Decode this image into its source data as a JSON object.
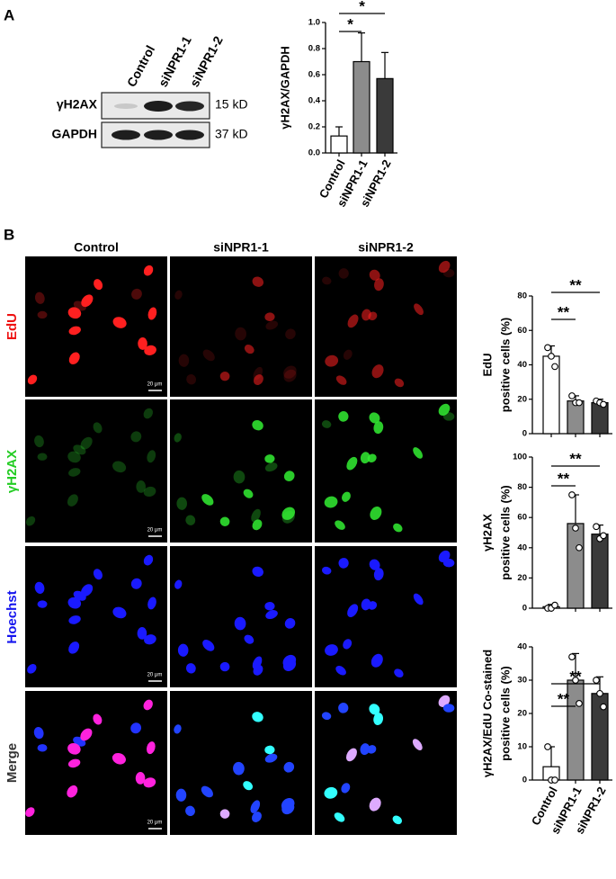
{
  "panel_labels": [
    "A",
    "B"
  ],
  "blot": {
    "lanes": [
      "Control",
      "siNPR1-1",
      "siNPR1-2"
    ],
    "rows": [
      {
        "protein": "γH2AX",
        "size": "15 kD"
      },
      {
        "protein": "GAPDH",
        "size": "37 kD"
      }
    ]
  },
  "images": {
    "columns": [
      "Control",
      "siNPR1-1",
      "siNPR1-2"
    ],
    "rows": [
      "EdU",
      "γH2AX",
      "Hoechst",
      "Merge"
    ],
    "scale_bar": "20 μm"
  },
  "chart_data": [
    {
      "type": "bar",
      "y_label": [
        "γH2AX/GAPDH"
      ],
      "categories": [
        "Control",
        "siNPR1-1",
        "siNPR1-2"
      ],
      "values": [
        0.13,
        0.7,
        0.57
      ],
      "errors": [
        0.07,
        0.22,
        0.2
      ],
      "colors": [
        "#ffffff",
        "#8c8c8c",
        "#3a3a3a"
      ],
      "ylim": [
        0,
        1
      ],
      "yticks": [
        {
          "value": 0,
          "label": "0.0"
        },
        0.2,
        0.4,
        0.6,
        0.8,
        {
          "value": 1,
          "label": "1.0"
        }
      ],
      "annotations": [
        "*",
        "*"
      ]
    },
    {
      "type": "bar",
      "y_label": [
        "EdU",
        "positive cells (%)"
      ],
      "categories": [
        null,
        null,
        null
      ],
      "values": [
        45,
        19,
        18
      ],
      "errors": [
        6,
        3,
        2
      ],
      "points": [
        [
          50,
          45,
          39
        ],
        [
          22,
          18,
          18
        ],
        [
          19,
          18,
          17
        ]
      ],
      "colors": [
        "#ffffff",
        "#8c8c8c",
        "#3a3a3a"
      ],
      "ylim": [
        0,
        80
      ],
      "yticks": [
        0,
        20,
        40,
        60,
        80
      ],
      "annotations": [
        "**",
        "**"
      ]
    },
    {
      "type": "bar",
      "y_label": [
        "γH2AX",
        "positive cells (%)"
      ],
      "categories": [
        null,
        null,
        null
      ],
      "values": [
        1,
        56,
        49
      ],
      "errors": [
        1.5,
        19,
        6
      ],
      "points": [
        [
          0,
          0,
          2
        ],
        [
          75,
          53,
          40
        ],
        [
          54,
          46,
          48
        ]
      ],
      "colors": [
        "#ffffff",
        "#8c8c8c",
        "#3a3a3a"
      ],
      "ylim": [
        0,
        100
      ],
      "yticks": [
        0,
        20,
        40,
        60,
        80,
        100
      ],
      "annotations": [
        "**",
        "**"
      ]
    },
    {
      "type": "bar",
      "y_label": [
        "γH2AX/EdU Co-stained",
        "positive cells (%)"
      ],
      "categories": [
        "Control",
        "siNPR1-1",
        "siNPR1-2"
      ],
      "values": [
        4,
        30,
        26
      ],
      "errors": [
        6,
        8,
        5
      ],
      "points": [
        [
          10,
          0,
          0
        ],
        [
          37,
          30,
          23
        ],
        [
          30,
          26,
          22
        ]
      ],
      "colors": [
        "#ffffff",
        "#8c8c8c",
        "#3a3a3a"
      ],
      "ylim": [
        0,
        40
      ],
      "yticks": [
        0,
        10,
        20,
        30,
        40
      ],
      "annotations": [
        "**",
        "**"
      ]
    }
  ]
}
